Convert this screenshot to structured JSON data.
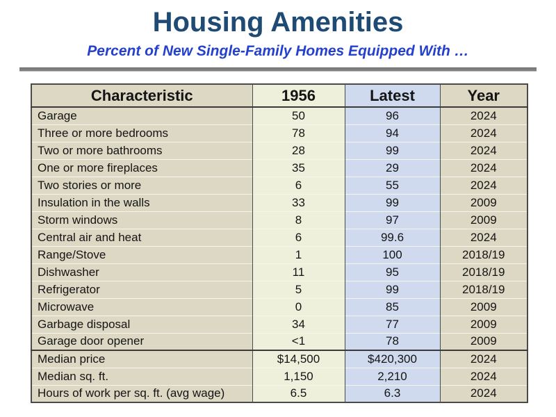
{
  "slide": {
    "title": "Housing Amenities",
    "subtitle": "Percent of New Single-Family Homes Equipped With …"
  },
  "table": {
    "columns": [
      "Characteristic",
      "1956",
      "Latest",
      "Year"
    ],
    "rows": [
      [
        "Garage",
        "50",
        "96",
        "2024"
      ],
      [
        "Three or more bedrooms",
        "78",
        "94",
        "2024"
      ],
      [
        "Two or more bathrooms",
        "28",
        "99",
        "2024"
      ],
      [
        "One or more fireplaces",
        "35",
        "29",
        "2024"
      ],
      [
        "Two stories or more",
        "6",
        "55",
        "2024"
      ],
      [
        "Insulation in the walls",
        "33",
        "99",
        "2009"
      ],
      [
        "Storm windows",
        "8",
        "97",
        "2009"
      ],
      [
        "Central air and heat",
        "6",
        "99.6",
        "2024"
      ],
      [
        "Range/Stove",
        "1",
        "100",
        "2018/19"
      ],
      [
        "Dishwasher",
        "11",
        "95",
        "2018/19"
      ],
      [
        "Refrigerator",
        "5",
        "99",
        "2018/19"
      ],
      [
        "Microwave",
        "0",
        "85",
        "2009"
      ],
      [
        "Garbage disposal",
        "34",
        "77",
        "2009"
      ],
      [
        "Garage door opener",
        "<1",
        "78",
        "2009"
      ],
      [
        "Median price",
        "$14,500",
        "$420,300",
        "2024"
      ],
      [
        "Median sq. ft.",
        "1,150",
        "2,210",
        "2024"
      ],
      [
        "Hours of work per sq. ft. (avg wage)",
        "6.5",
        "6.3",
        "2024"
      ]
    ],
    "summary_start_index": 14
  },
  "colors": {
    "title_text": "#1f4a73",
    "subtitle_text": "#2540cc",
    "divider_gray": "#7f7f7f",
    "characteristic_column_bg": "#dcd8c3",
    "col_1956_bg": "#eef0dc",
    "col_latest_bg": "#cfdaef",
    "year_column_bg": "#dcd8c3",
    "table_border": "#4a4a4a",
    "body_text": "#141414"
  }
}
